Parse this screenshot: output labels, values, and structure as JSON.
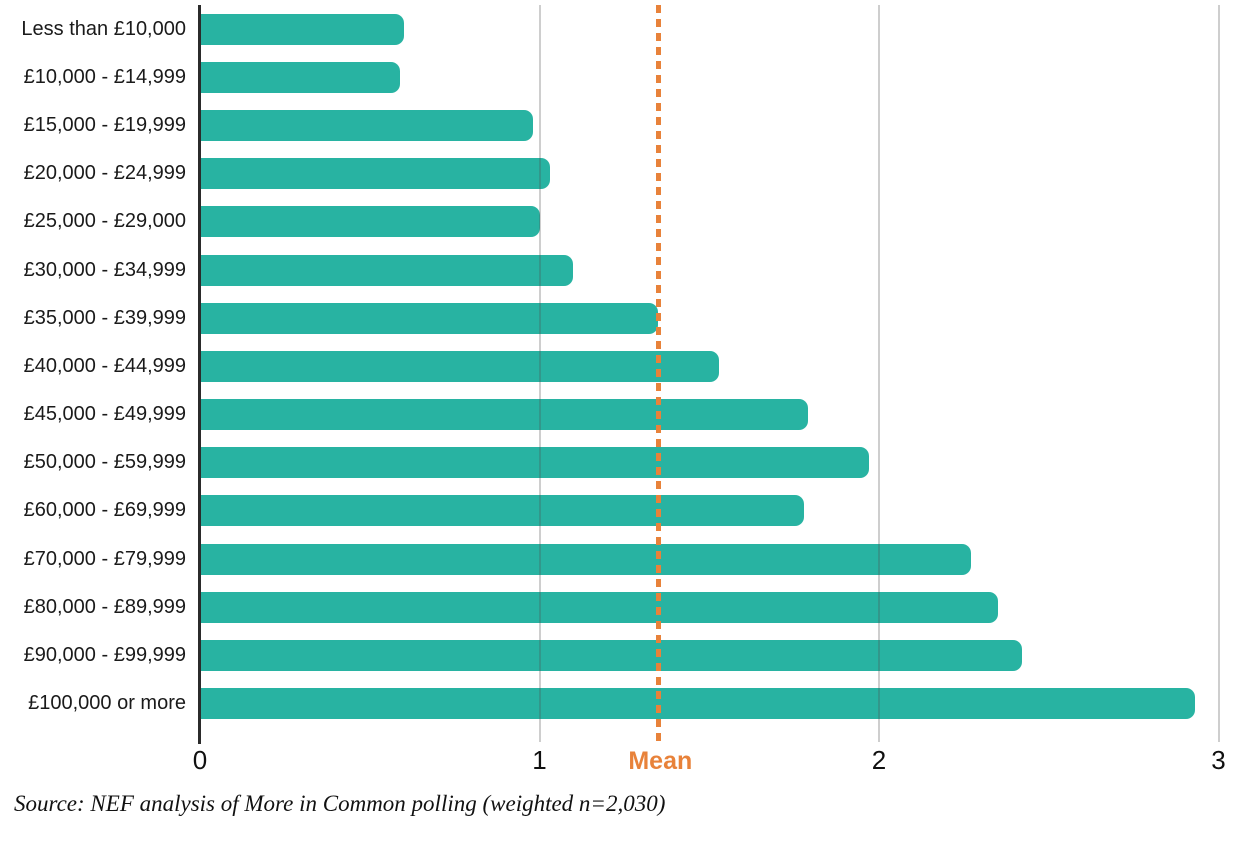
{
  "chart_data": {
    "type": "bar",
    "orientation": "horizontal",
    "title": "",
    "xlabel": "",
    "ylabel": "",
    "categories": [
      "Less than £10,000",
      "£10,000 - £14,999",
      "£15,000 - £19,999",
      "£20,000 - £24,999",
      "£25,000 - £29,000",
      "£30,000 - £34,999",
      "£35,000 - £39,999",
      "£40,000 - £44,999",
      "£45,000 - £49,999",
      "£50,000 - £59,999",
      "£60,000 - £69,999",
      "£70,000 - £79,999",
      "£80,000 - £89,999",
      "£90,000 - £99,999",
      "£100,000 or more"
    ],
    "values": [
      0.6,
      0.59,
      0.98,
      1.03,
      1.0,
      1.1,
      1.35,
      1.53,
      1.79,
      1.97,
      1.78,
      2.27,
      2.35,
      2.42,
      2.93
    ],
    "x_tick_values": [
      0,
      1,
      2,
      3
    ],
    "x_tick_labels": [
      "0",
      "1",
      "2",
      "3"
    ],
    "xlim": [
      0,
      3.07
    ],
    "grid": true,
    "legend": "none",
    "mean_value": 1.35,
    "mean_label": "Mean",
    "bar_color": "#28b3a2",
    "mean_color": "#e8823a",
    "axis_color": "#2b2b2b",
    "source": "Source: NEF analysis of More in Common polling (weighted n=2,030)"
  }
}
